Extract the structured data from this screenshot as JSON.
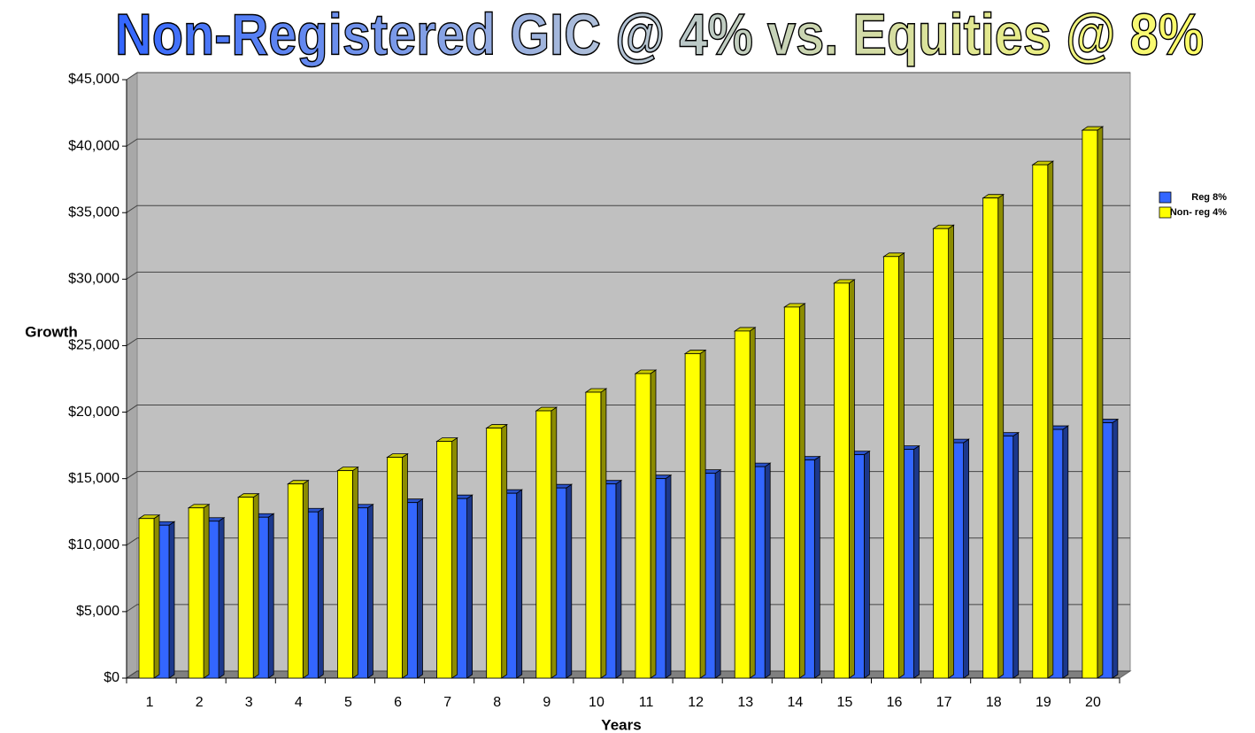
{
  "chart_data": {
    "type": "bar3d",
    "title": "Non-Registered GIC @ 4% vs. Equities @ 8%",
    "x_label": "Years",
    "y_label": "Growth",
    "categories": [
      "1",
      "2",
      "3",
      "4",
      "5",
      "6",
      "7",
      "8",
      "9",
      "10",
      "11",
      "12",
      "13",
      "14",
      "15",
      "16",
      "17",
      "18",
      "19",
      "20"
    ],
    "series": [
      {
        "name": "Reg 8%",
        "color": "#3366ff",
        "values": [
          11500,
          11800,
          12100,
          12500,
          12800,
          13200,
          13500,
          13900,
          14300,
          14600,
          15000,
          15400,
          15900,
          16400,
          16800,
          17200,
          17700,
          18200,
          18700,
          19200
        ]
      },
      {
        "name": "Non- reg 4%",
        "color": "#ffff00",
        "values": [
          12000,
          12800,
          13600,
          14600,
          15600,
          16600,
          17800,
          18800,
          20100,
          21500,
          22900,
          24400,
          26100,
          27900,
          29700,
          31700,
          33800,
          36100,
          38600,
          41200
        ]
      }
    ],
    "ylim": [
      0,
      45000
    ],
    "yticks": [
      {
        "value": 0,
        "label": "$0"
      },
      {
        "value": 5000,
        "label": "$5,000"
      },
      {
        "value": 10000,
        "label": "$10,000"
      },
      {
        "value": 15000,
        "label": "$15,000"
      },
      {
        "value": 20000,
        "label": "$20,000"
      },
      {
        "value": 25000,
        "label": "$25,000"
      },
      {
        "value": 30000,
        "label": "$30,000"
      },
      {
        "value": 35000,
        "label": "$35,000"
      },
      {
        "value": 40000,
        "label": "$40,000"
      },
      {
        "value": 45000,
        "label": "$45,000"
      }
    ],
    "grid": true,
    "legend": "right"
  }
}
